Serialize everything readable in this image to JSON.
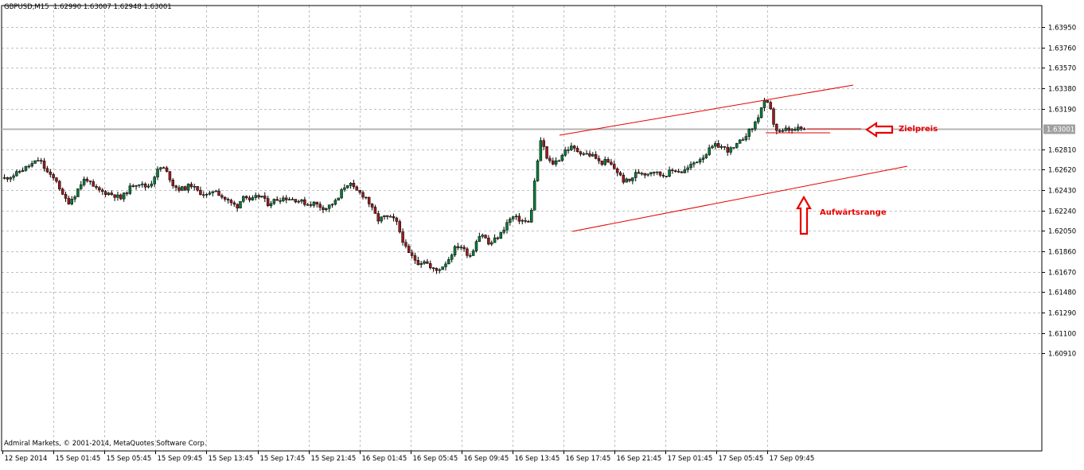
{
  "header": {
    "symbol": "GBPUSD,M15",
    "ohlc": "1.62990 1.63007 1.62948 1.63001"
  },
  "footer": {
    "copyright": "Admiral Markets, © 2001-2014, MetaQuotes Software Corp."
  },
  "current_price_label": "1.63001",
  "annotations": {
    "target": "Zielpreis",
    "range": "Aufwärtsrange"
  },
  "colors": {
    "background": "#ffffff",
    "grid": "#c0c0c0",
    "bull_body": "#0a7a3a",
    "bear_body": "#9b1b1b",
    "wick": "#000000",
    "channel": "#e60000",
    "arrow": "#e60000",
    "price_line": "#b4b4b4",
    "price_tag": "#a0a0a0"
  },
  "chart_data": {
    "type": "candlestick",
    "symbol": "GBPUSD",
    "timeframe": "M15",
    "ylim": [
      1.6,
      1.6415
    ],
    "y_ticks": [
      "1.63950",
      "1.63760",
      "1.63570",
      "1.63380",
      "1.63190",
      "1.63001",
      "1.62810",
      "1.62620",
      "1.62430",
      "1.62240",
      "1.62050",
      "1.61860",
      "1.61670",
      "1.61480",
      "1.61290",
      "1.61100",
      "1.60910"
    ],
    "x_ticks": [
      "12 Sep 2014",
      "15 Sep 01:45",
      "15 Sep 05:45",
      "15 Sep 09:45",
      "15 Sep 13:45",
      "15 Sep 17:45",
      "15 Sep 21:45",
      "16 Sep 01:45",
      "16 Sep 05:45",
      "16 Sep 09:45",
      "16 Sep 13:45",
      "16 Sep 17:45",
      "16 Sep 21:45",
      "17 Sep 01:45",
      "17 Sep 05:45",
      "17 Sep 09:45"
    ],
    "grid": true,
    "current_price": 1.63001,
    "price_path": [
      1.6254,
      1.6256,
      1.6258,
      1.6262,
      1.6265,
      1.6268,
      1.6272,
      1.6262,
      1.6255,
      1.6252,
      1.6237,
      1.6232,
      1.6238,
      1.6248,
      1.6255,
      1.6246,
      1.6243,
      1.6241,
      1.624,
      1.6238,
      1.6235,
      1.6242,
      1.6248,
      1.625,
      1.6246,
      1.6248,
      1.626,
      1.6265,
      1.6258,
      1.6247,
      1.6244,
      1.6245,
      1.6248,
      1.6242,
      1.624,
      1.6237,
      1.6245,
      1.6238,
      1.6234,
      1.623,
      1.6228,
      1.624,
      1.6232,
      1.6236,
      1.6238,
      1.623,
      1.6233,
      1.6235,
      1.6236,
      1.6235,
      1.6234,
      1.6232,
      1.623,
      1.6231,
      1.6228,
      1.6226,
      1.623,
      1.6233,
      1.6245,
      1.625,
      1.6243,
      1.624,
      1.6236,
      1.6225,
      1.6215,
      1.6218,
      1.6217,
      1.6215,
      1.62,
      1.6185,
      1.618,
      1.6175,
      1.6178,
      1.617,
      1.6168,
      1.6172,
      1.6178,
      1.6188,
      1.6192,
      1.6185,
      1.6182,
      1.62,
      1.6202,
      1.6192,
      1.6197,
      1.6202,
      1.6212,
      1.6218,
      1.6216,
      1.6214,
      1.6212,
      1.626,
      1.6292,
      1.627,
      1.6268,
      1.6272,
      1.628,
      1.6283,
      1.628,
      1.6278,
      1.6276,
      1.6275,
      1.6268,
      1.627,
      1.6266,
      1.626,
      1.6252,
      1.6251,
      1.6258,
      1.626,
      1.6258,
      1.6262,
      1.6258,
      1.6257,
      1.626,
      1.6262,
      1.626,
      1.6263,
      1.6268,
      1.6272,
      1.6276,
      1.6282,
      1.6285,
      1.6283,
      1.628,
      1.6282,
      1.6288,
      1.6295,
      1.63,
      1.631,
      1.6325,
      1.6322,
      1.63,
      1.6296,
      1.63,
      1.6298,
      1.63,
      1.63001
    ],
    "trend_lines": [
      {
        "name": "channel-upper",
        "points": [
          [
            703,
            170
          ],
          [
            1072,
            107
          ]
        ]
      },
      {
        "name": "channel-lower",
        "points": [
          [
            719,
            291
          ],
          [
            1140,
            209
          ]
        ]
      },
      {
        "name": "target-level",
        "points": [
          [
            962,
            167
          ],
          [
            1043,
            167
          ]
        ]
      },
      {
        "name": "target-stub",
        "points": [
          [
            1014,
            162
          ],
          [
            1082,
            162
          ]
        ]
      }
    ]
  }
}
